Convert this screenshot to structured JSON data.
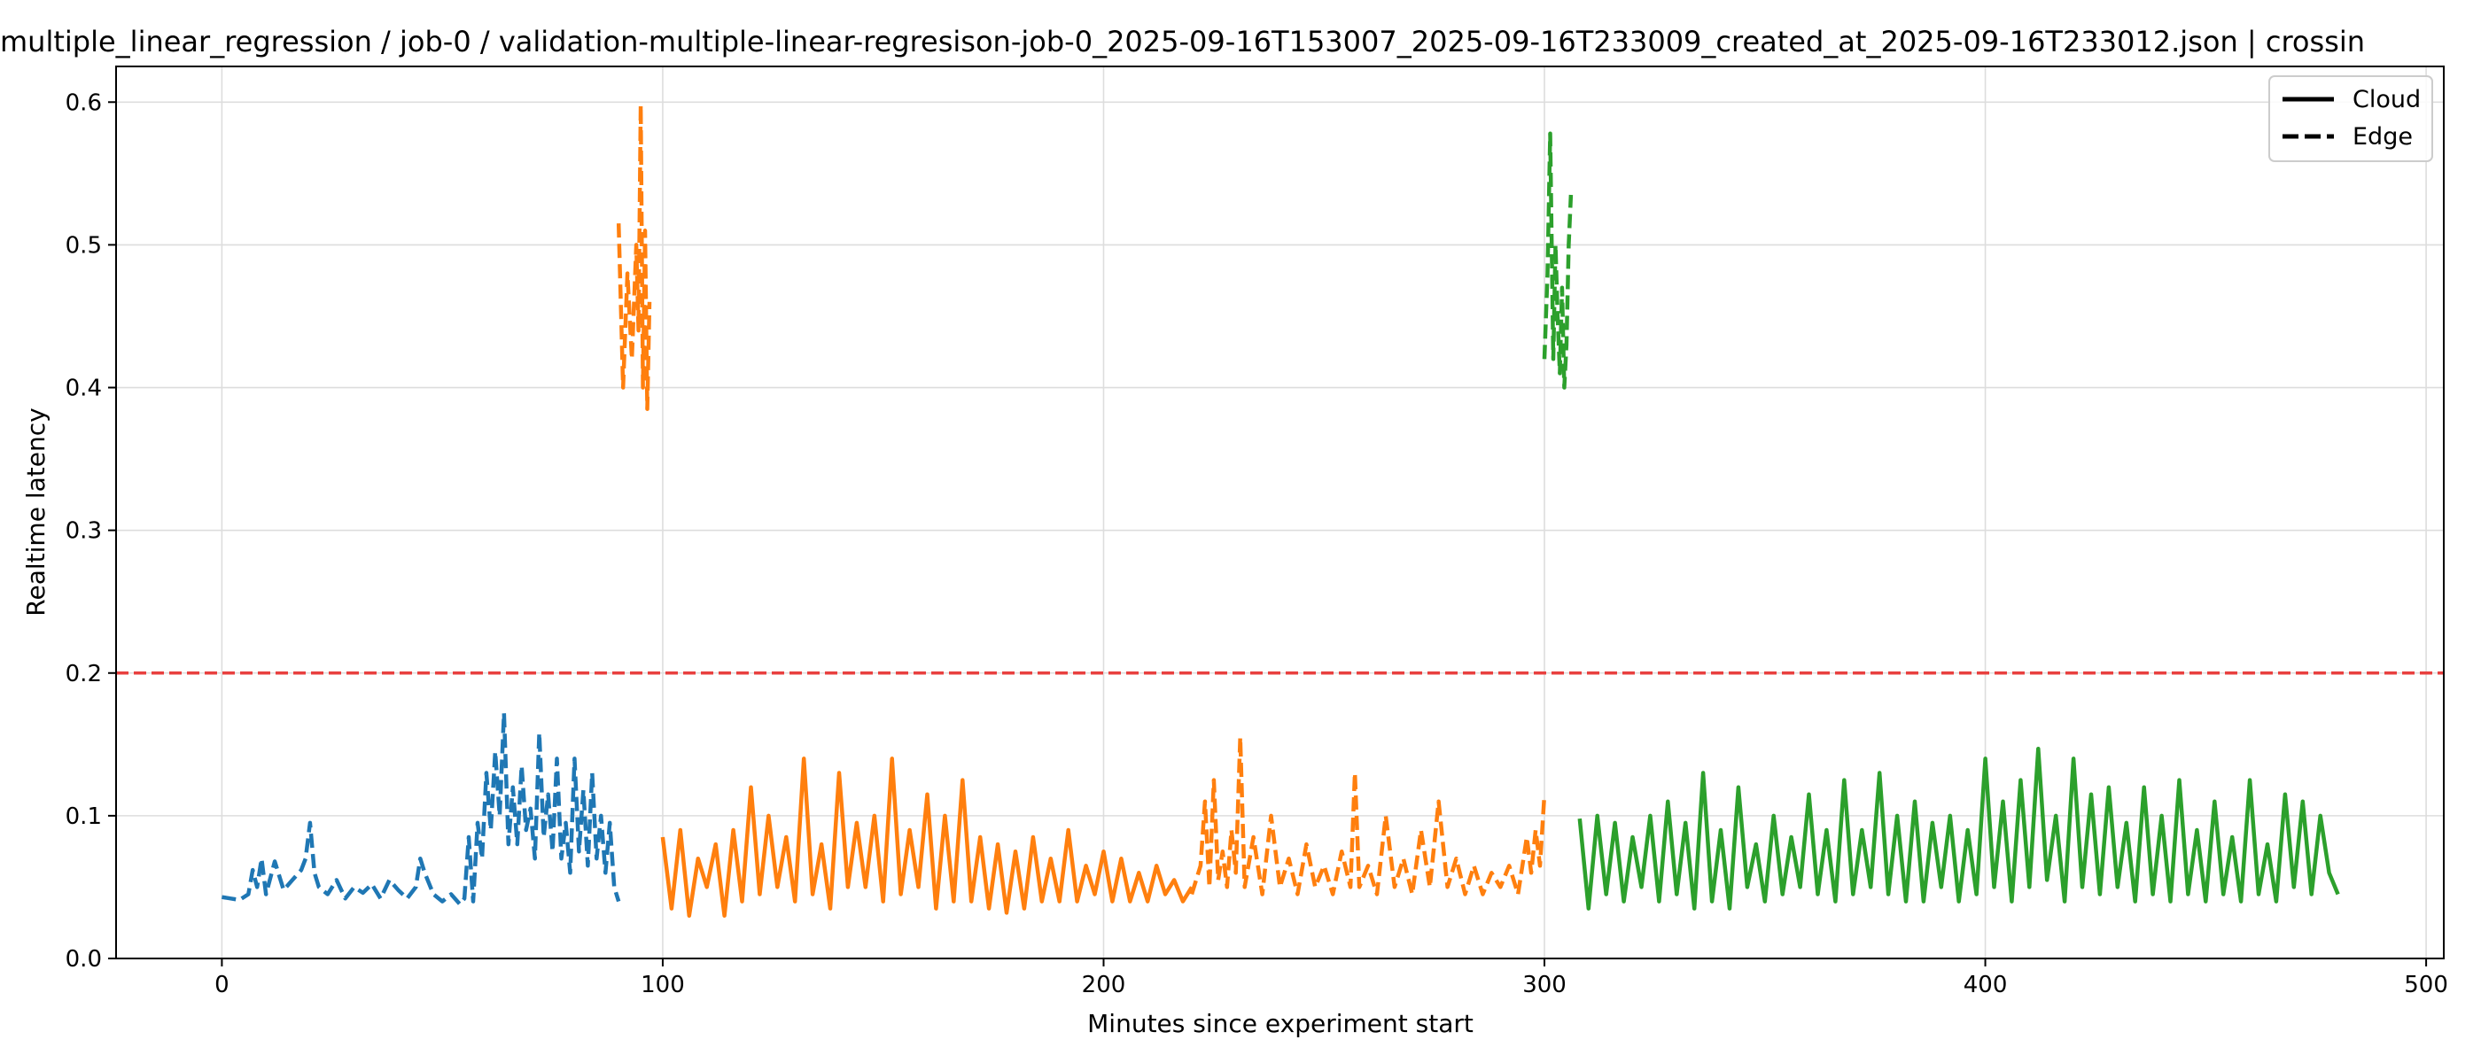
{
  "chart_data": {
    "type": "line",
    "title": "multiple_linear_regression / job-0 / validation-multiple-linear-regresison-job-0_2025-09-16T153007_2025-09-16T233009_created_at_2025-09-16T233012.json  |  crossin",
    "xlabel": "Minutes since experiment start",
    "ylabel": "Realtime latency",
    "xlim": [
      -24,
      504
    ],
    "ylim": [
      0.0,
      0.625
    ],
    "x_ticks": [
      "0",
      "100",
      "200",
      "300",
      "400",
      "500"
    ],
    "y_ticks": [
      "0.0",
      "0.1",
      "0.2",
      "0.3",
      "0.4",
      "0.5",
      "0.6"
    ],
    "grid": true,
    "legend_position": "top-right",
    "legend": [
      {
        "label": "Cloud",
        "style": "solid"
      },
      {
        "label": "Edge",
        "style": "dashed"
      }
    ],
    "threshold": {
      "y": 0.2,
      "color": "#e8403f",
      "style": "dashed"
    },
    "series": [
      {
        "group": "1",
        "style": "dashed",
        "color": "#1f77b4",
        "x": [
          0,
          2,
          4,
          6,
          7,
          8,
          9,
          10,
          12,
          14,
          16,
          18,
          19,
          20,
          21,
          22,
          24,
          26,
          28,
          30,
          32,
          34,
          36,
          38,
          40,
          42,
          44,
          45,
          46,
          48,
          50,
          52,
          54,
          55,
          56,
          57,
          58,
          59,
          60,
          61,
          62,
          63,
          64,
          65,
          66,
          67,
          68,
          69,
          70,
          71,
          72,
          73,
          74,
          75,
          76,
          77,
          78,
          79,
          80,
          81,
          82,
          83,
          84,
          85,
          86,
          87,
          88,
          89,
          90
        ],
        "y": [
          0.043,
          0.042,
          0.041,
          0.045,
          0.062,
          0.05,
          0.07,
          0.045,
          0.068,
          0.048,
          0.055,
          0.062,
          0.07,
          0.095,
          0.06,
          0.05,
          0.045,
          0.055,
          0.042,
          0.05,
          0.046,
          0.052,
          0.042,
          0.055,
          0.048,
          0.042,
          0.05,
          0.07,
          0.06,
          0.045,
          0.04,
          0.045,
          0.038,
          0.042,
          0.085,
          0.04,
          0.095,
          0.07,
          0.13,
          0.09,
          0.145,
          0.1,
          0.172,
          0.08,
          0.12,
          0.08,
          0.135,
          0.09,
          0.105,
          0.07,
          0.158,
          0.085,
          0.115,
          0.075,
          0.14,
          0.07,
          0.095,
          0.06,
          0.14,
          0.075,
          0.118,
          0.065,
          0.13,
          0.07,
          0.1,
          0.06,
          0.095,
          0.05,
          0.04
        ]
      },
      {
        "group": "2",
        "style": "dashed",
        "color": "#ff7f0e",
        "x": [
          90,
          91,
          92,
          93,
          94,
          94.5,
          95,
          95.5,
          96,
          96.5,
          97
        ],
        "y": [
          0.515,
          0.4,
          0.48,
          0.42,
          0.5,
          0.44,
          0.598,
          0.4,
          0.51,
          0.385,
          0.46
        ]
      },
      {
        "group": "2",
        "style": "solid",
        "color": "#ff7f0e",
        "x": [
          100,
          102,
          104,
          106,
          108,
          110,
          112,
          114,
          116,
          118,
          120,
          122,
          124,
          126,
          128,
          130,
          132,
          134,
          136,
          138,
          140,
          142,
          144,
          146,
          148,
          150,
          152,
          154,
          156,
          158,
          160,
          162,
          164,
          166,
          168,
          170,
          172,
          174,
          176,
          178,
          180,
          182,
          184,
          186,
          188,
          190,
          192,
          194,
          196,
          198,
          200,
          202,
          204,
          206,
          208,
          210,
          212,
          214,
          216,
          218,
          220
        ],
        "y": [
          0.085,
          0.035,
          0.09,
          0.03,
          0.07,
          0.05,
          0.08,
          0.03,
          0.09,
          0.04,
          0.12,
          0.045,
          0.1,
          0.05,
          0.085,
          0.04,
          0.14,
          0.045,
          0.08,
          0.035,
          0.13,
          0.05,
          0.095,
          0.05,
          0.1,
          0.04,
          0.14,
          0.045,
          0.09,
          0.05,
          0.115,
          0.035,
          0.1,
          0.04,
          0.125,
          0.04,
          0.085,
          0.035,
          0.08,
          0.032,
          0.075,
          0.035,
          0.085,
          0.04,
          0.07,
          0.04,
          0.09,
          0.04,
          0.065,
          0.045,
          0.075,
          0.04,
          0.07,
          0.04,
          0.06,
          0.04,
          0.065,
          0.045,
          0.055,
          0.04,
          0.05
        ]
      },
      {
        "group": "2",
        "style": "dashed",
        "color": "#ff7f0e",
        "x": [
          220,
          222,
          223,
          224,
          225,
          226,
          227,
          228,
          229,
          230,
          231,
          232,
          234,
          236,
          238,
          240,
          242,
          244,
          246,
          248,
          250,
          252,
          254,
          256,
          257,
          258,
          260,
          262,
          264,
          266,
          268,
          270,
          272,
          274,
          276,
          278,
          280,
          282,
          284,
          286,
          288,
          290,
          292,
          294,
          296,
          297,
          298,
          299,
          300
        ],
        "y": [
          0.045,
          0.065,
          0.11,
          0.05,
          0.125,
          0.055,
          0.075,
          0.05,
          0.09,
          0.06,
          0.155,
          0.05,
          0.085,
          0.045,
          0.1,
          0.05,
          0.07,
          0.045,
          0.08,
          0.05,
          0.065,
          0.045,
          0.075,
          0.05,
          0.13,
          0.05,
          0.065,
          0.045,
          0.1,
          0.05,
          0.07,
          0.045,
          0.09,
          0.05,
          0.11,
          0.05,
          0.07,
          0.045,
          0.065,
          0.045,
          0.06,
          0.05,
          0.065,
          0.045,
          0.085,
          0.06,
          0.09,
          0.065,
          0.115
        ]
      },
      {
        "group": "3",
        "style": "dashed",
        "color": "#2ca02c",
        "x": [
          300,
          300.7,
          301.3,
          302,
          302.5,
          303,
          303.5,
          304,
          304.5,
          305,
          305.5,
          306
        ],
        "y": [
          0.42,
          0.48,
          0.578,
          0.42,
          0.5,
          0.45,
          0.41,
          0.47,
          0.4,
          0.43,
          0.5,
          0.535
        ]
      },
      {
        "group": "3",
        "style": "solid",
        "color": "#2ca02c",
        "x": [
          308,
          310,
          312,
          314,
          316,
          318,
          320,
          322,
          324,
          326,
          328,
          330,
          332,
          334,
          336,
          338,
          340,
          342,
          344,
          346,
          348,
          350,
          352,
          354,
          356,
          358,
          360,
          362,
          364,
          366,
          368,
          370,
          372,
          374,
          376,
          378,
          380,
          382,
          384,
          386,
          388,
          390,
          392,
          394,
          396,
          398,
          400,
          402,
          404,
          406,
          408,
          410,
          412,
          414,
          416,
          418,
          420,
          422,
          424,
          426,
          428,
          430,
          432,
          434,
          436,
          438,
          440,
          442,
          444,
          446,
          448,
          450,
          452,
          454,
          456,
          458,
          460,
          462,
          464,
          466,
          468,
          470,
          472,
          474,
          476,
          478,
          480
        ],
        "y": [
          0.098,
          0.035,
          0.1,
          0.045,
          0.095,
          0.04,
          0.085,
          0.05,
          0.1,
          0.04,
          0.11,
          0.045,
          0.095,
          0.035,
          0.13,
          0.04,
          0.09,
          0.035,
          0.12,
          0.05,
          0.08,
          0.04,
          0.1,
          0.045,
          0.085,
          0.05,
          0.115,
          0.045,
          0.09,
          0.04,
          0.125,
          0.045,
          0.09,
          0.05,
          0.13,
          0.045,
          0.1,
          0.04,
          0.11,
          0.04,
          0.095,
          0.05,
          0.1,
          0.04,
          0.09,
          0.045,
          0.14,
          0.05,
          0.11,
          0.04,
          0.125,
          0.05,
          0.147,
          0.055,
          0.1,
          0.04,
          0.14,
          0.05,
          0.115,
          0.045,
          0.12,
          0.05,
          0.095,
          0.04,
          0.12,
          0.045,
          0.1,
          0.04,
          0.125,
          0.045,
          0.09,
          0.04,
          0.11,
          0.045,
          0.085,
          0.04,
          0.125,
          0.045,
          0.08,
          0.04,
          0.115,
          0.05,
          0.11,
          0.045,
          0.1,
          0.06,
          0.045
        ]
      }
    ]
  }
}
